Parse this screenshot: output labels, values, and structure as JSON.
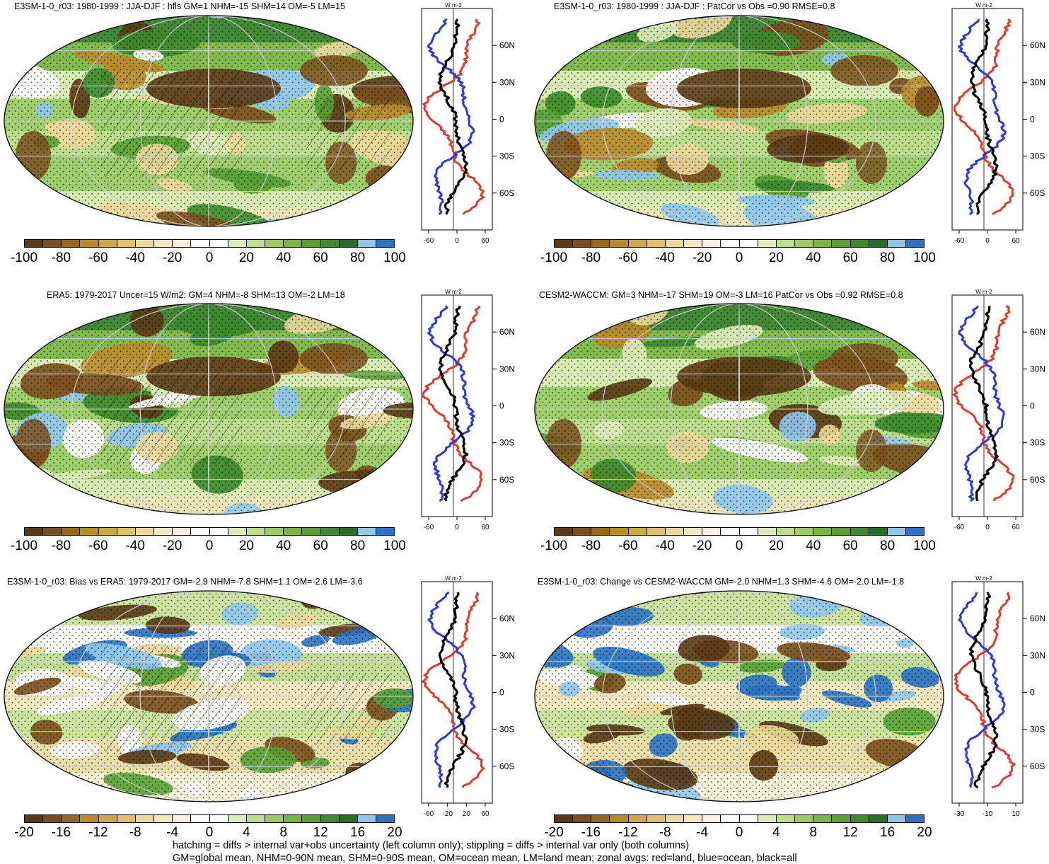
{
  "units_label": "W m-2",
  "lat_labels": [
    "60N",
    "30N",
    "0",
    "30S",
    "60S"
  ],
  "colors": {
    "brown_dark": "#5c3a12",
    "brown": "#8b5a1e",
    "tan": "#c8a05a",
    "sand": "#e8d39a",
    "cream": "#f3e9c4",
    "white": "#ffffff",
    "lightgreen": "#c7e29a",
    "green": "#8cc45a",
    "midgreen": "#5aa33c",
    "darkgreen": "#2f7a28",
    "lightblue": "#8fc3ea",
    "blue": "#3b82c9",
    "land_line": "#e03a2a",
    "ocean_line": "#2a3ad8",
    "all_line": "#000000"
  },
  "panels": [
    {
      "title": "E3SM-1-0_r03: 1980-1999 : JJA-DJF : hfls GM=1 NHM=-15 SHM=14 OM=-5 LM=15",
      "colorbar_ticks": [
        "-100",
        "-80",
        "-60",
        "-40",
        "-20",
        "0",
        "20",
        "40",
        "60",
        "80",
        "100"
      ],
      "zonal_ticks": [
        "-60",
        "0",
        "60"
      ]
    },
    {
      "title": "E3SM-1-0_r03: 1980-1999 : JJA-DJF : PatCor vs Obs =0.90 RMSE=0.8",
      "colorbar_ticks": [
        "-100",
        "-80",
        "-60",
        "-40",
        "-20",
        "0",
        "20",
        "40",
        "60",
        "80",
        "100"
      ],
      "zonal_ticks": [
        "-60",
        "0",
        "60"
      ]
    },
    {
      "title": "ERA5: 1979-2017 Uncer=15 W/m2: GM=4 NHM=-8 SHM=13 OM=-2 LM=18",
      "colorbar_ticks": [
        "-100",
        "-80",
        "-60",
        "-40",
        "-20",
        "0",
        "20",
        "40",
        "60",
        "80",
        "100"
      ],
      "zonal_ticks": [
        "-60",
        "0",
        "60"
      ]
    },
    {
      "title": "CESM2-WACCM: GM=3 NHM=-17 SHM=19 OM=-3 LM=16 PatCor vs Obs =0.92 RMSE=0.8",
      "colorbar_ticks": [
        "-100",
        "-80",
        "-60",
        "-40",
        "-20",
        "0",
        "20",
        "40",
        "60",
        "80",
        "100"
      ],
      "zonal_ticks": [
        "-60",
        "0",
        "60"
      ]
    },
    {
      "title": "E3SM-1-0_r03: Bias vs ERA5: 1979-2017 GM=-2.9 NHM=-7.8 SHM=1.1 OM=-2.6 LM=-3.6",
      "colorbar_ticks": [
        "-20",
        "-16",
        "-12",
        "-8",
        "-4",
        "0",
        "4",
        "8",
        "12",
        "16",
        "20"
      ],
      "zonal_ticks": [
        "-60",
        "-20",
        "20",
        "60"
      ]
    },
    {
      "title": "E3SM-1-0_r03: Change vs CESM2-WACCM GM=-2.0 NHM=1.3 SHM=-4.6 OM=-2.0 LM=-1.8",
      "colorbar_ticks": [
        "-20",
        "-16",
        "-12",
        "-8",
        "-4",
        "0",
        "4",
        "8",
        "12",
        "16",
        "20"
      ],
      "zonal_ticks": [
        "-30",
        "-10",
        "10"
      ]
    }
  ],
  "footer": {
    "line1": "hatching = diffs > internal var+obs uncertainty (left column only); stippling = diffs > internal var only (both columns)",
    "line2": "GM=global mean, NHM=0-90N mean, SHM=0-90S mean, OM=ocean mean, LM=land mean; zonal avgs: red=land, blue=ocean, black=all"
  }
}
